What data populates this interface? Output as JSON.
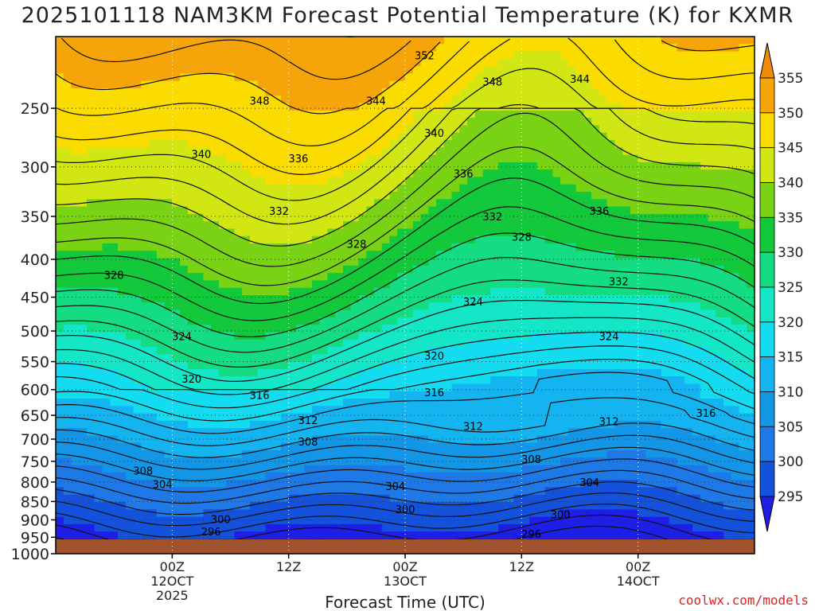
{
  "title": "2025101118 NAM3KM Forecast Potential Temperature (K) for KXMR",
  "credit": "coolwx.com/models",
  "chart_data": {
    "type": "heatmap",
    "title": "2025101118 NAM3KM Forecast Potential Temperature (K) for KXMR",
    "xlabel": "Forecast Time (UTC)",
    "ylabel": "",
    "y_scale": "log-pressure",
    "ylim": [
      1000,
      200
    ],
    "y_ticks": [
      250,
      300,
      350,
      400,
      450,
      500,
      550,
      600,
      650,
      700,
      750,
      800,
      850,
      900,
      950,
      1000
    ],
    "x_ticks": [
      {
        "label": "00Z",
        "sub": "12OCT",
        "sub2": "2025"
      },
      {
        "label": "12Z",
        "sub": "",
        "sub2": ""
      },
      {
        "label": "00Z",
        "sub": "13OCT",
        "sub2": ""
      },
      {
        "label": "12Z",
        "sub": "",
        "sub2": ""
      },
      {
        "label": "00Z",
        "sub": "14OCT",
        "sub2": ""
      }
    ],
    "grid": true,
    "colorbar": {
      "levels": [
        295,
        300,
        305,
        310,
        315,
        320,
        325,
        330,
        335,
        340,
        345,
        350,
        355
      ],
      "colors": [
        "#1e1ee6",
        "#1452dc",
        "#1e78e6",
        "#1496e6",
        "#14b4f0",
        "#14dcf0",
        "#14e6c8",
        "#14dc82",
        "#14c83c",
        "#7ad214",
        "#d2e614",
        "#fadc00",
        "#f5a50a",
        "#ee8c0a"
      ]
    },
    "contour_labels": [
      {
        "value": 352,
        "x": 26,
        "p": 212
      },
      {
        "value": 348,
        "x": 9,
        "p": 244
      },
      {
        "value": 348,
        "x": 33,
        "p": 230
      },
      {
        "value": 344,
        "x": 21,
        "p": 244
      },
      {
        "value": 344,
        "x": 42,
        "p": 228
      },
      {
        "value": 340,
        "x": 3,
        "p": 288
      },
      {
        "value": 340,
        "x": 27,
        "p": 270
      },
      {
        "value": 336,
        "x": 13,
        "p": 292
      },
      {
        "value": 336,
        "x": 30,
        "p": 306
      },
      {
        "value": 336,
        "x": 44,
        "p": 344
      },
      {
        "value": 332,
        "x": 11,
        "p": 344
      },
      {
        "value": 332,
        "x": 33,
        "p": 350
      },
      {
        "value": 332,
        "x": 46,
        "p": 428
      },
      {
        "value": 328,
        "x": -6,
        "p": 420
      },
      {
        "value": 328,
        "x": 19,
        "p": 381
      },
      {
        "value": 328,
        "x": 36,
        "p": 373
      },
      {
        "value": 324,
        "x": 1,
        "p": 508
      },
      {
        "value": 324,
        "x": 31,
        "p": 456
      },
      {
        "value": 324,
        "x": 45,
        "p": 508
      },
      {
        "value": 320,
        "x": 2,
        "p": 580
      },
      {
        "value": 320,
        "x": 27,
        "p": 540
      },
      {
        "value": 316,
        "x": 9,
        "p": 610
      },
      {
        "value": 316,
        "x": 27,
        "p": 605
      },
      {
        "value": 316,
        "x": 55,
        "p": 645
      },
      {
        "value": 312,
        "x": 14,
        "p": 660
      },
      {
        "value": 312,
        "x": 31,
        "p": 672
      },
      {
        "value": 312,
        "x": 45,
        "p": 662
      },
      {
        "value": 308,
        "x": 14,
        "p": 705
      },
      {
        "value": 308,
        "x": -3,
        "p": 772
      },
      {
        "value": 308,
        "x": 37,
        "p": 745
      },
      {
        "value": 304,
        "x": -1,
        "p": 805
      },
      {
        "value": 304,
        "x": 23,
        "p": 810
      },
      {
        "value": 304,
        "x": 43,
        "p": 800
      },
      {
        "value": 300,
        "x": 5,
        "p": 898
      },
      {
        "value": 300,
        "x": 24,
        "p": 870
      },
      {
        "value": 300,
        "x": 40,
        "p": 885
      },
      {
        "value": 296,
        "x": 4,
        "p": 933
      },
      {
        "value": 296,
        "x": 37,
        "p": 940
      }
    ]
  }
}
